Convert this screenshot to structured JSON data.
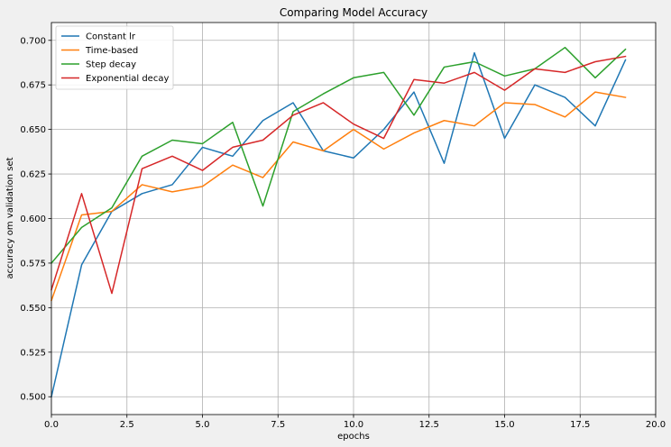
{
  "chart_data": {
    "type": "line",
    "title": "Comparing Model Accuracy",
    "xlabel": "epochs",
    "ylabel": "accuracy om validation set",
    "xlim": [
      0,
      20
    ],
    "ylim": [
      0.49,
      0.71
    ],
    "x_ticks": [
      "0.0",
      "2.5",
      "5.0",
      "7.5",
      "10.0",
      "12.5",
      "15.0",
      "17.5",
      "20.0"
    ],
    "y_ticks": [
      "0.500",
      "0.525",
      "0.550",
      "0.575",
      "0.600",
      "0.625",
      "0.650",
      "0.675",
      "0.700"
    ],
    "grid": true,
    "legend_position": "top-left",
    "x": [
      0,
      1,
      2,
      3,
      4,
      5,
      6,
      7,
      8,
      9,
      10,
      11,
      12,
      13,
      14,
      15,
      16,
      17,
      18,
      19
    ],
    "series": [
      {
        "name": "Constant lr",
        "color": "#1f77b4",
        "values": [
          0.5,
          0.574,
          0.604,
          0.614,
          0.619,
          0.64,
          0.635,
          0.655,
          0.665,
          0.638,
          0.634,
          0.65,
          0.671,
          0.631,
          0.693,
          0.645,
          0.675,
          0.668,
          0.652,
          0.689
        ]
      },
      {
        "name": "Time-based",
        "color": "#ff7f0e",
        "values": [
          0.554,
          0.602,
          0.604,
          0.619,
          0.615,
          0.618,
          0.63,
          0.623,
          0.643,
          0.638,
          0.65,
          0.639,
          0.648,
          0.655,
          0.652,
          0.665,
          0.664,
          0.657,
          0.671,
          0.668
        ]
      },
      {
        "name": "Step decay",
        "color": "#2ca02c",
        "values": [
          0.575,
          0.595,
          0.606,
          0.635,
          0.644,
          0.642,
          0.654,
          0.607,
          0.66,
          0.67,
          0.679,
          0.682,
          0.658,
          0.685,
          0.688,
          0.68,
          0.684,
          0.696,
          0.679,
          0.695
        ]
      },
      {
        "name": "Exponential decay",
        "color": "#d62728",
        "values": [
          0.56,
          0.614,
          0.558,
          0.628,
          0.635,
          0.627,
          0.64,
          0.644,
          0.658,
          0.665,
          0.653,
          0.645,
          0.678,
          0.676,
          0.682,
          0.672,
          0.684,
          0.682,
          0.688,
          0.691
        ]
      }
    ]
  }
}
